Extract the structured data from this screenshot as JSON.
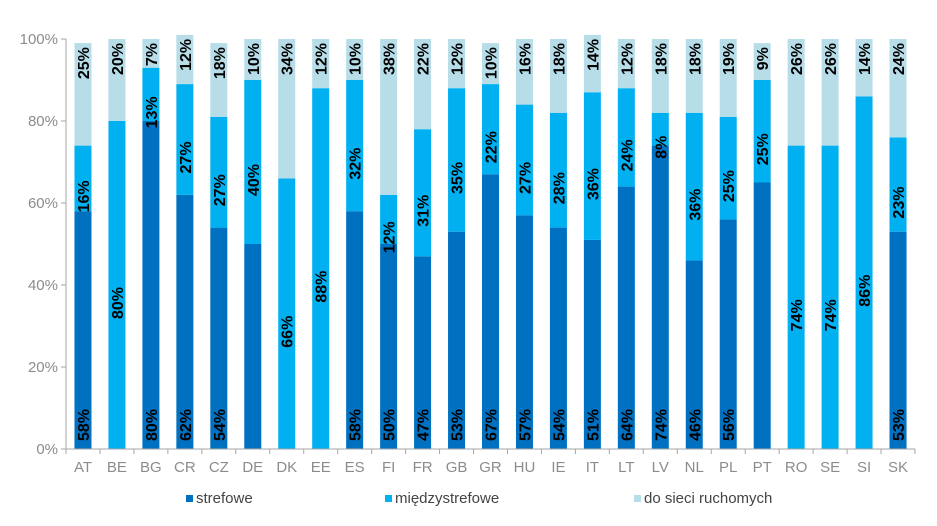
{
  "chart_data": {
    "type": "bar",
    "stacked": true,
    "orientation": "vertical",
    "categories": [
      "AT",
      "BE",
      "BG",
      "CR",
      "CZ",
      "DE",
      "DK",
      "EE",
      "ES",
      "FI",
      "FR",
      "GB",
      "GR",
      "HU",
      "IE",
      "IT",
      "LT",
      "LV",
      "NL",
      "PL",
      "PT",
      "RO",
      "SE",
      "SI",
      "SK"
    ],
    "series": [
      {
        "name": "strefowe",
        "color": "#0070c0",
        "values": [
          58,
          0,
          80,
          62,
          54,
          50,
          0,
          0,
          58,
          50,
          47,
          53,
          67,
          57,
          54,
          51,
          64,
          74,
          46,
          56,
          65,
          0,
          0,
          0,
          53
        ],
        "labels": [
          "58%",
          "",
          "80%",
          "62%",
          "54%",
          "",
          "",
          "",
          "58%",
          "50%",
          "47%",
          "53%",
          "67%",
          "57%",
          "54%",
          "51%",
          "64%",
          "74%",
          "46%",
          "56%",
          "",
          "",
          "",
          "",
          "53%"
        ]
      },
      {
        "name": "międzystrefowe",
        "color": "#00b0f0",
        "values": [
          16,
          80,
          13,
          27,
          27,
          40,
          66,
          88,
          32,
          12,
          31,
          35,
          22,
          27,
          28,
          36,
          24,
          8,
          36,
          25,
          25,
          74,
          74,
          86,
          23
        ],
        "labels": [
          "16%",
          "80%",
          "13%",
          "27%",
          "27%",
          "40%",
          "66%",
          "88%",
          "32%",
          "12%",
          "31%",
          "35%",
          "22%",
          "27%",
          "28%",
          "36%",
          "24%",
          "8%",
          "36%",
          "25%",
          "25%",
          "74%",
          "74%",
          "86%",
          "23%"
        ]
      },
      {
        "name": "do sieci ruchomych",
        "color": "#b7dde8",
        "values": [
          25,
          20,
          7,
          12,
          18,
          10,
          34,
          12,
          10,
          38,
          22,
          12,
          10,
          16,
          18,
          14,
          12,
          18,
          18,
          19,
          9,
          26,
          26,
          14,
          24
        ],
        "labels": [
          "25%",
          "20%",
          "7%",
          "12%",
          "18%",
          "10%",
          "34%",
          "12%",
          "10%",
          "38%",
          "22%",
          "12%",
          "10%",
          "16%",
          "18%",
          "14%",
          "12%",
          "18%",
          "18%",
          "19%",
          "9%",
          "26%",
          "26%",
          "14%",
          "24%"
        ]
      }
    ],
    "ylim": [
      0,
      100
    ],
    "yticks": [
      "0%",
      "20%",
      "40%",
      "60%",
      "80%",
      "100%"
    ],
    "grid": false,
    "legend_position": "bottom"
  }
}
